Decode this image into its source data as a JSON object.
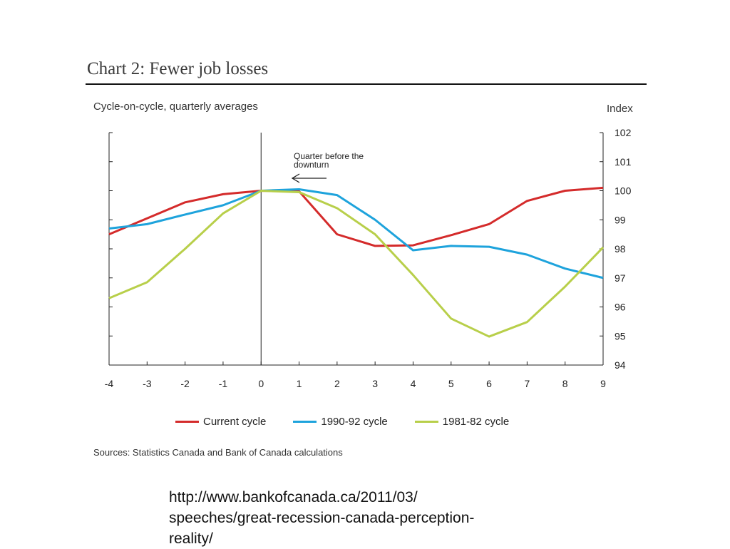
{
  "title": "Chart 2: Fewer job losses",
  "subtitle": "Cycle-on-cycle, quarterly averages",
  "sources": "Sources: Statistics Canada and Bank of Canada calculations",
  "url_lines": [
    "http://www.bankofcanada.ca/2011/03/",
    "speeches/great-recession-canada-perception-",
    "reality/"
  ],
  "chart_data": {
    "type": "line",
    "title": "Chart 2: Fewer job losses",
    "subtitle": "Cycle-on-cycle, quarterly averages",
    "xlabel": "",
    "ylabel": "Index",
    "x": [
      -4,
      -3,
      -2,
      -1,
      0,
      1,
      2,
      3,
      4,
      5,
      6,
      7,
      8,
      9
    ],
    "xlim": [
      -4,
      9
    ],
    "ylim": [
      94,
      102
    ],
    "yticks": [
      94,
      95,
      96,
      97,
      98,
      99,
      100,
      101,
      102
    ],
    "y_axis_side": "right",
    "grid": false,
    "legend_position": "bottom",
    "vertical_marker_x": 0,
    "annotation": {
      "text_lines": [
        "Quarter before the",
        "downturn"
      ],
      "arrow": "left"
    },
    "series": [
      {
        "name": "Current cycle",
        "color": "#d42b2b",
        "values": [
          98.5,
          99.05,
          99.6,
          99.88,
          100.0,
          99.98,
          98.5,
          98.1,
          98.12,
          98.47,
          98.85,
          99.65,
          100.0,
          100.1
        ]
      },
      {
        "name": "1990-92 cycle",
        "color": "#1ea3dc",
        "values": [
          98.7,
          98.85,
          99.18,
          99.5,
          100.0,
          100.05,
          99.85,
          99.0,
          97.95,
          98.1,
          98.07,
          97.8,
          97.32,
          97.0
        ]
      },
      {
        "name": "1981-82 cycle",
        "color": "#b8cf4a",
        "values": [
          96.3,
          96.85,
          98.0,
          99.22,
          100.0,
          99.95,
          99.4,
          98.5,
          97.1,
          95.6,
          94.98,
          95.48,
          96.7,
          98.05
        ]
      }
    ]
  }
}
